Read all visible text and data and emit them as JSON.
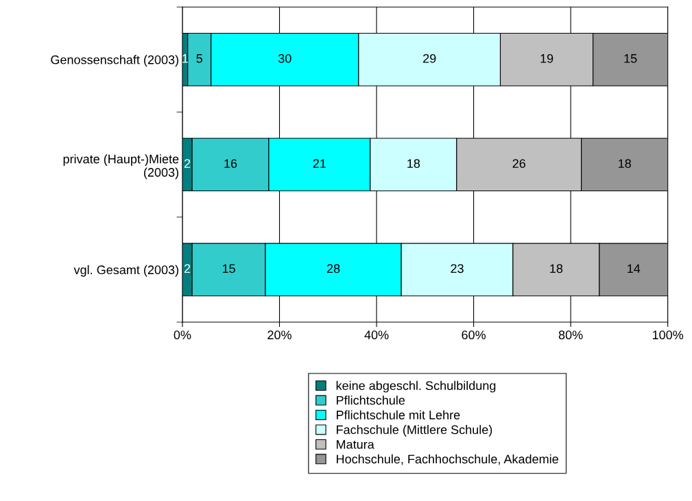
{
  "chart_data": {
    "type": "bar",
    "orientation": "horizontal",
    "stacked": true,
    "categories": [
      "Genossenschaft (2003)",
      "private (Haupt-)Miete\n(2003)",
      "vgl. Gesamt (2003)"
    ],
    "series": [
      {
        "name": "keine abgeschl. Schulbildung",
        "color": "#007f7f",
        "values": [
          1.1,
          2.0,
          2.0
        ],
        "value_labels": [
          "1",
          "2",
          "2"
        ]
      },
      {
        "name": "Pflichtschule",
        "color": "#33cccc",
        "values": [
          4.8,
          15.8,
          15.1
        ],
        "value_labels": [
          "5",
          "16",
          "15"
        ]
      },
      {
        "name": "Pflichtschule mit Lehre",
        "color": "#00ffff",
        "values": [
          30.4,
          20.9,
          28.0
        ],
        "value_labels": [
          "30",
          "21",
          "28"
        ]
      },
      {
        "name": "Fachschule (Mittlere Schule)",
        "color": "#ccffff",
        "values": [
          29.2,
          17.8,
          23.0
        ],
        "value_labels": [
          "29",
          "18",
          "23"
        ]
      },
      {
        "name": "Matura",
        "color": "#c0c0c0",
        "values": [
          19.1,
          25.7,
          17.8
        ],
        "value_labels": [
          "19",
          "26",
          "18"
        ]
      },
      {
        "name": "Hochschule, Fachhochschule, Akademie",
        "color": "#969696",
        "values": [
          15.4,
          17.8,
          14.1
        ],
        "value_labels": [
          "15",
          "18",
          "14"
        ]
      }
    ],
    "xlim": [
      0,
      100
    ],
    "xticks": [
      {
        "value": 0,
        "label": "0%"
      },
      {
        "value": 20,
        "label": "20%"
      },
      {
        "value": 40,
        "label": "40%"
      },
      {
        "value": 60,
        "label": "60%"
      },
      {
        "value": 80,
        "label": "80%"
      },
      {
        "value": 100,
        "label": "100%"
      }
    ],
    "grid": "x",
    "legend": "bottom"
  }
}
